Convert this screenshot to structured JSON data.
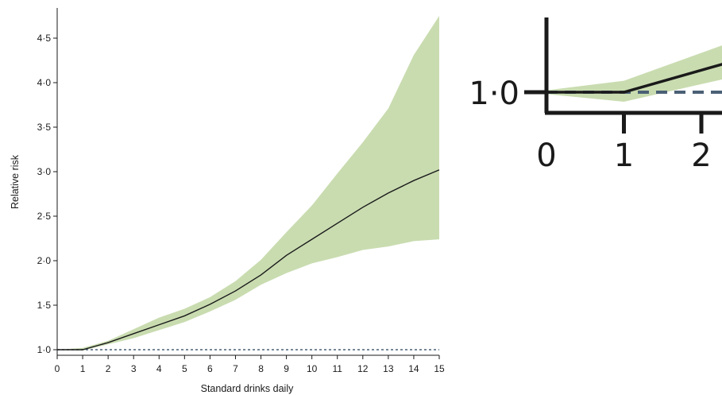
{
  "chart_data": [
    {
      "type": "line",
      "xlabel": "Standard drinks daily",
      "ylabel": "Relative risk",
      "xlim": [
        0,
        15
      ],
      "ylim": [
        1.0,
        4.8
      ],
      "x_ticks": [
        0,
        1,
        2,
        3,
        4,
        5,
        6,
        7,
        8,
        9,
        10,
        11,
        12,
        13,
        14,
        15
      ],
      "x_tick_labels": [
        "0",
        "1",
        "2",
        "3",
        "4",
        "5",
        "6",
        "7",
        "8",
        "9",
        "10",
        "11",
        "12",
        "13",
        "14",
        "15"
      ],
      "y_ticks": [
        1.0,
        1.5,
        2.0,
        2.5,
        3.0,
        3.5,
        4.0,
        4.5
      ],
      "y_tick_labels": [
        "1·0",
        "1·5",
        "2·0",
        "2·5",
        "3·0",
        "3·5",
        "4·0",
        "4·5"
      ],
      "reference_line": {
        "y": 1.0,
        "style": "dashed"
      },
      "series": [
        {
          "x": [
            0,
            1,
            2,
            3,
            4,
            5,
            6,
            7,
            8,
            9,
            10,
            11,
            12,
            13,
            14,
            15
          ],
          "y": [
            1.0,
            1.0,
            1.08,
            1.18,
            1.28,
            1.38,
            1.51,
            1.66,
            1.84,
            2.06,
            2.24,
            2.42,
            2.6,
            2.76,
            2.9,
            3.02
          ],
          "lower": [
            1.0,
            0.99,
            1.06,
            1.13,
            1.22,
            1.31,
            1.43,
            1.56,
            1.73,
            1.86,
            1.97,
            2.04,
            2.12,
            2.16,
            2.22,
            2.24
          ],
          "upper": [
            1.0,
            1.02,
            1.1,
            1.23,
            1.36,
            1.46,
            1.59,
            1.77,
            2.01,
            2.32,
            2.62,
            2.98,
            3.33,
            3.71,
            4.31,
            4.75
          ]
        }
      ],
      "colors": {
        "line": "#1a1a1a",
        "ci_fill": "#c9dcb0",
        "reference": "#4a6075"
      },
      "grid": false
    },
    {
      "type": "line",
      "x_ticks": [
        0,
        1,
        2
      ],
      "x_tick_labels": [
        "0",
        "1",
        "2"
      ],
      "y_tick_labels": [
        "1·0"
      ],
      "reference_line": {
        "y": 1.0,
        "style": "dashed"
      },
      "series": [
        {
          "x": [
            0,
            1,
            2.3
          ],
          "y": [
            1.0,
            1.0,
            1.15
          ],
          "lower": [
            0.99,
            0.95,
            1.07
          ],
          "upper": [
            1.01,
            1.06,
            1.25
          ]
        }
      ],
      "colors": {
        "line": "#1a1a1a",
        "ci_fill": "#c9dcb0",
        "reference": "#4a6075"
      }
    }
  ]
}
